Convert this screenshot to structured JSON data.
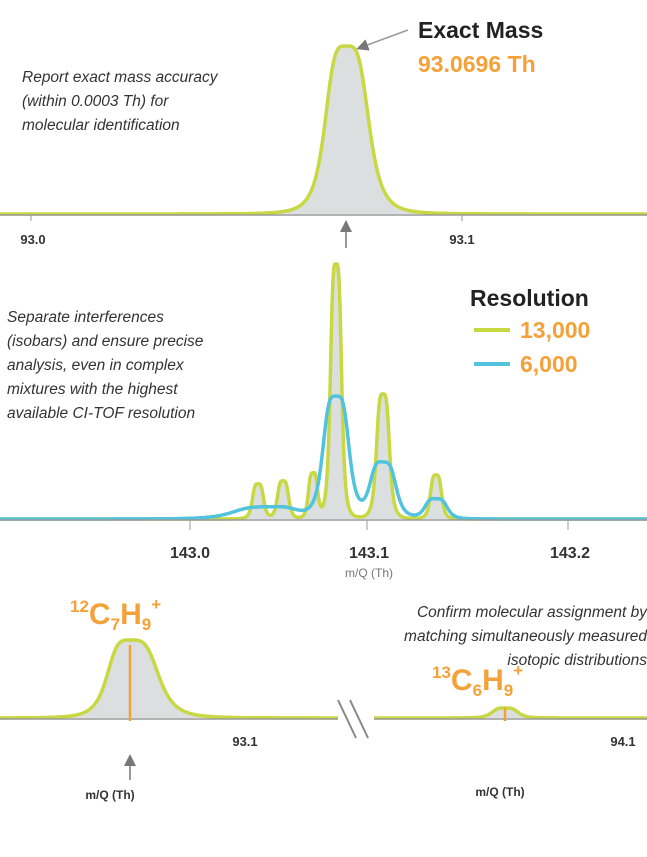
{
  "panel1": {
    "heading": "Exact Mass",
    "mass": "93.0696 Th",
    "description": [
      "Report exact mass accuracy",
      "(within 0.0003 Th) for",
      "molecular identification"
    ],
    "ticks": [
      "93.0",
      "93.1"
    ]
  },
  "panel2": {
    "heading": "Resolution",
    "legend": [
      {
        "name": "13,000",
        "color": "#c8d842"
      },
      {
        "name": "6,000",
        "color": "#52c3dd"
      }
    ],
    "description": [
      "Separate interferences",
      "(isobars) and ensure precise",
      "analysis, even in complex",
      "mixtures with the highest",
      "available CI-TOF resolution"
    ],
    "ticks": [
      "143.0",
      "143.1",
      "143.2"
    ],
    "axis_label": "m/Q (Th)"
  },
  "panel3": {
    "formula1": {
      "mass": "12",
      "element1": "C",
      "count1": "7",
      "element2": "H",
      "count2": "9",
      "charge": "+"
    },
    "formula2": {
      "mass": "13",
      "element1": "C",
      "count1": "6",
      "element2": "H",
      "count2": "9",
      "charge": "+"
    },
    "description": [
      "Confirm molecular assignment by",
      "matching simultaneously measured",
      "isotopic distributions"
    ],
    "ticks": [
      "93.1",
      "94.1"
    ],
    "axis_labels": [
      "m/Q (Th)",
      "m/Q (Th)"
    ]
  }
}
